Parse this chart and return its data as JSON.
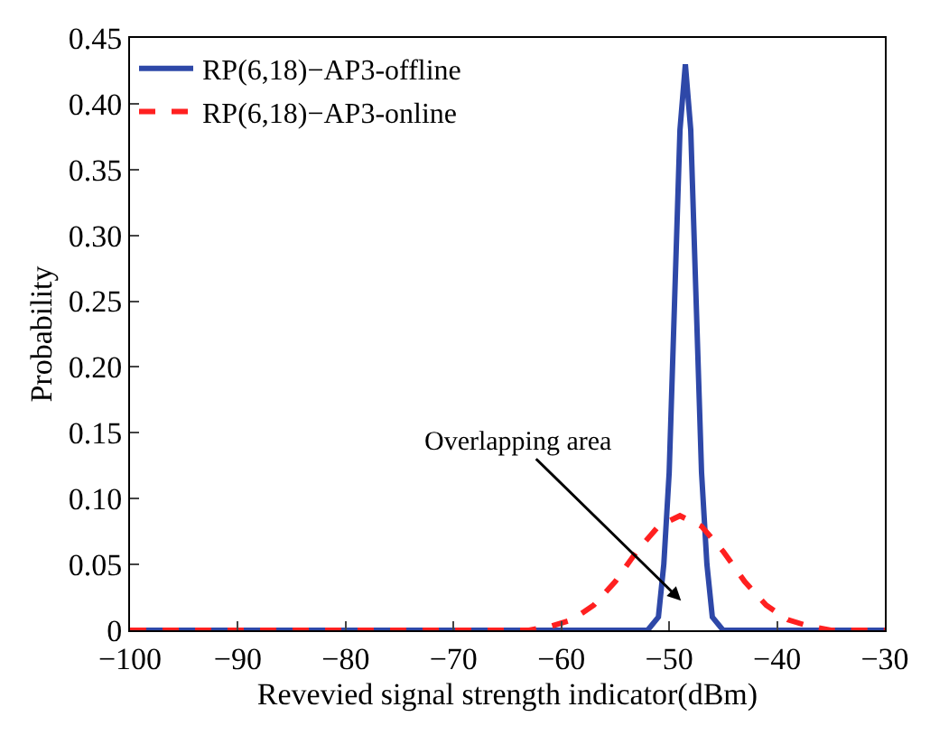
{
  "chart_data": {
    "type": "line",
    "xlabel": "Revevied signal strength indicator(dBm)",
    "ylabel": "Probability",
    "series": [
      {
        "name": "RP(6,18)−AP3-offline",
        "color": "#2e48a8",
        "line_style": "solid",
        "x": [
          -100,
          -52,
          -51,
          -50.5,
          -50,
          -49.5,
          -49,
          -48.5,
          -48,
          -47.5,
          -47,
          -46.5,
          -46,
          -45,
          -30
        ],
        "values": [
          0,
          0,
          0.01,
          0.05,
          0.12,
          0.25,
          0.38,
          0.43,
          0.38,
          0.25,
          0.12,
          0.05,
          0.01,
          0,
          0
        ]
      },
      {
        "name": "RP(6,18)−AP3-online",
        "color": "#ff2020",
        "line_style": "dashed",
        "x": [
          -100,
          -63,
          -61,
          -59,
          -57,
          -55,
          -53,
          -51,
          -49,
          -47,
          -45,
          -43,
          -41,
          -39,
          -37,
          -35,
          -30
        ],
        "values": [
          0,
          0,
          0.003,
          0.008,
          0.019,
          0.037,
          0.06,
          0.079,
          0.087,
          0.079,
          0.06,
          0.037,
          0.019,
          0.008,
          0.003,
          0,
          0
        ]
      }
    ],
    "annotations": [
      "Overlapping area"
    ],
    "xlim": [
      -100,
      -30
    ],
    "xticks": [
      -100,
      -90,
      -80,
      -70,
      -60,
      -50,
      -40,
      -30
    ],
    "ylim": [
      0,
      0.45
    ],
    "yticks": [
      0,
      0.05,
      {
        "value": 0.1,
        "label": "0.10"
      },
      0.15,
      {
        "value": 0.2,
        "label": "0.20"
      },
      0.25,
      {
        "value": 0.3,
        "label": "0.30"
      },
      0.35,
      {
        "value": 0.4,
        "label": "0.40"
      },
      0.45
    ],
    "legend": "top left",
    "marker": "none"
  }
}
